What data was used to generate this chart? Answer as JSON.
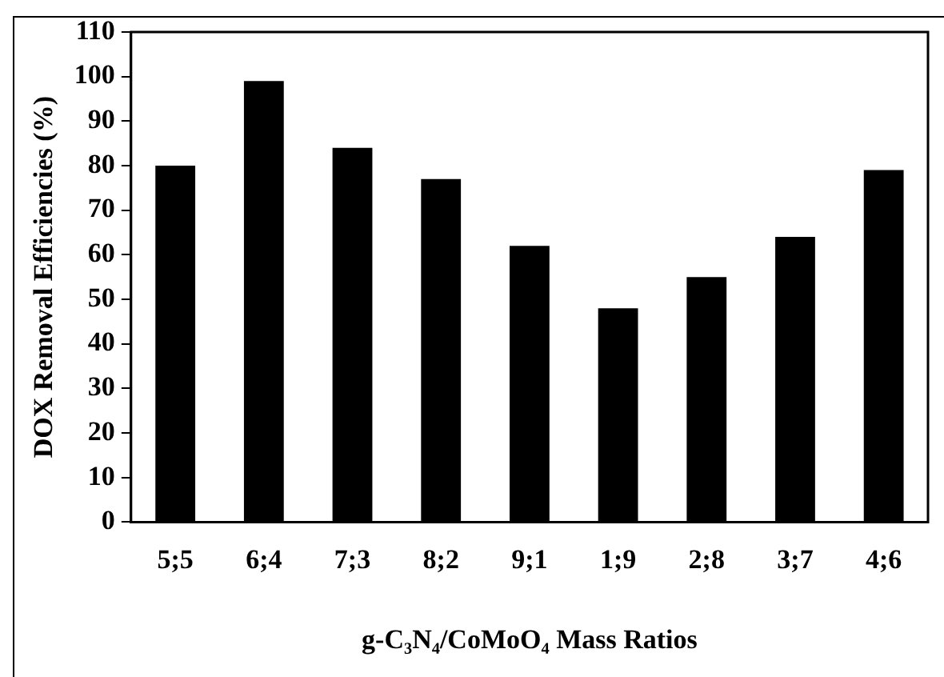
{
  "chart_data": {
    "type": "bar",
    "xlabel": "g-C₃N₄/CoMoO₄ Mass Ratios",
    "ylabel": "DOX Removal Efficiencies (%)",
    "categories": [
      "5;5",
      "6;4",
      "7;3",
      "8;2",
      "9;1",
      "1;9",
      "2;8",
      "3;7",
      "4;6"
    ],
    "values": [
      80,
      99,
      84,
      77,
      62,
      48,
      55,
      64,
      79
    ],
    "color": "#000000",
    "ylim": [
      0,
      110
    ],
    "yticks": [
      0,
      10,
      20,
      30,
      40,
      50,
      60,
      70,
      80,
      90,
      100,
      110
    ],
    "grid": false,
    "legend": false
  }
}
